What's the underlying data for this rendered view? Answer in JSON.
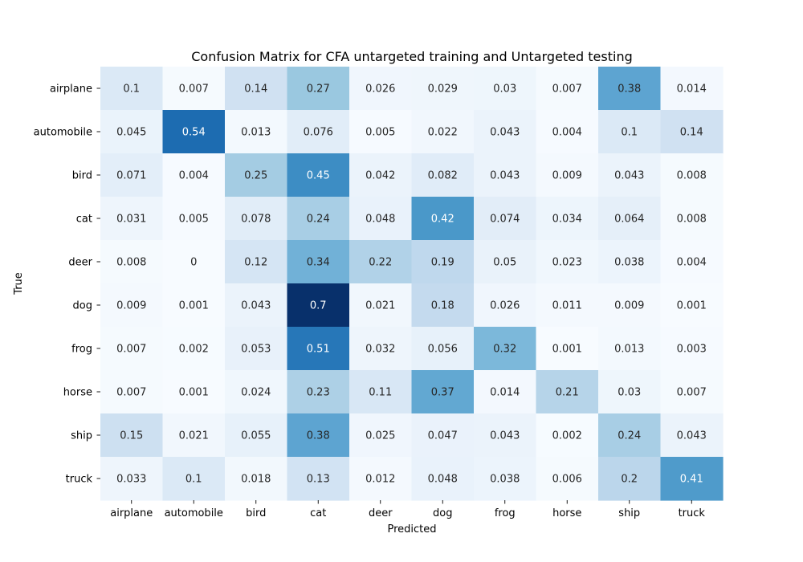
{
  "chart_data": {
    "type": "heatmap",
    "title": "Confusion Matrix for CFA untargeted training and Untargeted testing",
    "xlabel": "Predicted",
    "ylabel": "True",
    "x_categories": [
      "airplane",
      "automobile",
      "bird",
      "cat",
      "deer",
      "dog",
      "frog",
      "horse",
      "ship",
      "truck"
    ],
    "y_categories": [
      "airplane",
      "automobile",
      "bird",
      "cat",
      "deer",
      "dog",
      "frog",
      "horse",
      "ship",
      "truck"
    ],
    "values": [
      [
        "0.1",
        "0.007",
        "0.14",
        "0.27",
        "0.026",
        "0.029",
        "0.03",
        "0.007",
        "0.38",
        "0.014"
      ],
      [
        "0.045",
        "0.54",
        "0.013",
        "0.076",
        "0.005",
        "0.022",
        "0.043",
        "0.004",
        "0.1",
        "0.14"
      ],
      [
        "0.071",
        "0.004",
        "0.25",
        "0.45",
        "0.042",
        "0.082",
        "0.043",
        "0.009",
        "0.043",
        "0.008"
      ],
      [
        "0.031",
        "0.005",
        "0.078",
        "0.24",
        "0.048",
        "0.42",
        "0.074",
        "0.034",
        "0.064",
        "0.008"
      ],
      [
        "0.008",
        "0",
        "0.12",
        "0.34",
        "0.22",
        "0.19",
        "0.05",
        "0.023",
        "0.038",
        "0.004"
      ],
      [
        "0.009",
        "0.001",
        "0.043",
        "0.7",
        "0.021",
        "0.18",
        "0.026",
        "0.011",
        "0.009",
        "0.001"
      ],
      [
        "0.007",
        "0.002",
        "0.053",
        "0.51",
        "0.032",
        "0.056",
        "0.32",
        "0.001",
        "0.013",
        "0.003"
      ],
      [
        "0.007",
        "0.001",
        "0.024",
        "0.23",
        "0.11",
        "0.37",
        "0.014",
        "0.21",
        "0.03",
        "0.007"
      ],
      [
        "0.15",
        "0.021",
        "0.055",
        "0.38",
        "0.025",
        "0.047",
        "0.043",
        "0.002",
        "0.24",
        "0.043"
      ],
      [
        "0.033",
        "0.1",
        "0.018",
        "0.13",
        "0.012",
        "0.048",
        "0.038",
        "0.006",
        "0.2",
        "0.41"
      ]
    ],
    "colormap": "Blues",
    "color_range": [
      0,
      0.7
    ],
    "colorbar": false,
    "grid": false
  }
}
